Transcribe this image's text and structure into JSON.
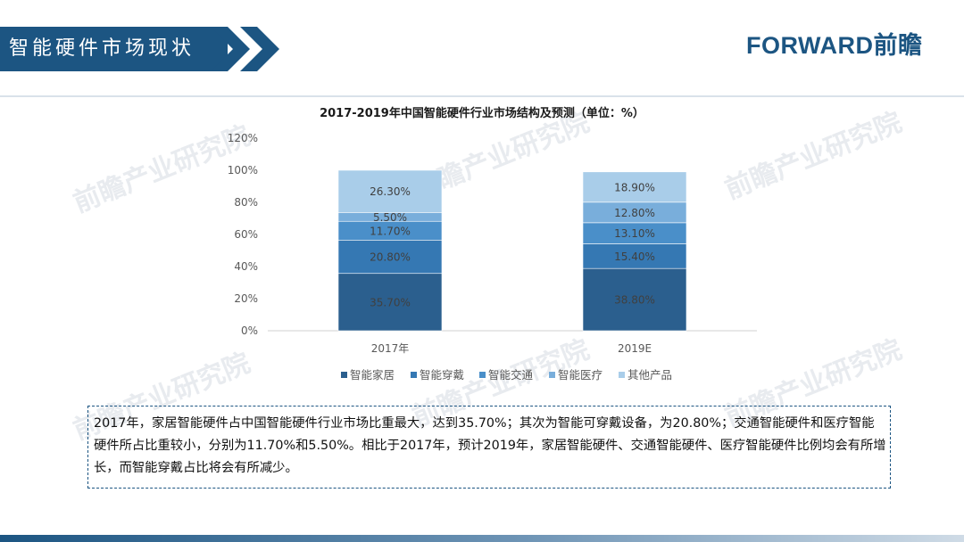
{
  "header": {
    "title": "智能硬件市场现状"
  },
  "brand": {
    "name": "FORWARD前瞻"
  },
  "watermark": {
    "text": "前瞻产业研究院"
  },
  "colors": {
    "header_bg": "#1c5582",
    "smart_home": "#2b5f8e",
    "smart_wearable": "#3578b3",
    "smart_transport": "#4a8fc9",
    "smart_medical": "#79aedb",
    "other_products": "#a9cde9"
  },
  "chart_data": {
    "type": "bar",
    "stacked": true,
    "title": "2017-2019年中国智能硬件行业市场结构及预测（单位：%）",
    "categories": [
      "2017年",
      "2019E"
    ],
    "series": [
      {
        "name": "智能家居",
        "values": [
          35.7,
          38.8
        ],
        "labels": [
          "35.70%",
          "38.80%"
        ],
        "color": "#2b5f8e"
      },
      {
        "name": "智能穿戴",
        "values": [
          20.8,
          15.4
        ],
        "labels": [
          "20.80%",
          "15.40%"
        ],
        "color": "#3578b3"
      },
      {
        "name": "智能交通",
        "values": [
          11.7,
          13.1
        ],
        "labels": [
          "11.70%",
          "13.10%"
        ],
        "color": "#4a8fc9"
      },
      {
        "name": "智能医疗",
        "values": [
          5.5,
          12.8
        ],
        "labels": [
          "5.50%",
          "12.80%"
        ],
        "color": "#79aedb"
      },
      {
        "name": "其他产品",
        "values": [
          26.3,
          18.9
        ],
        "labels": [
          "26.30%",
          "18.90%"
        ],
        "color": "#a9cde9"
      }
    ],
    "ylim": [
      0,
      120
    ],
    "yticks": [
      "0%",
      "20%",
      "40%",
      "60%",
      "80%",
      "100%",
      "120%"
    ],
    "xlabel": "",
    "ylabel": "",
    "grid": false,
    "legend": "bottom"
  },
  "summary": {
    "text": "2017年，家居智能硬件占中国智能硬件行业市场比重最大，达到35.70%；其次为智能可穿戴设备，为20.80%；交通智能硬件和医疗智能硬件所占比重较小，分别为11.70%和5.50%。相比于2017年，预计2019年，家居智能硬件、交通智能硬件、医疗智能硬件比例均会有所增长，而智能穿戴占比将会有所减少。"
  }
}
